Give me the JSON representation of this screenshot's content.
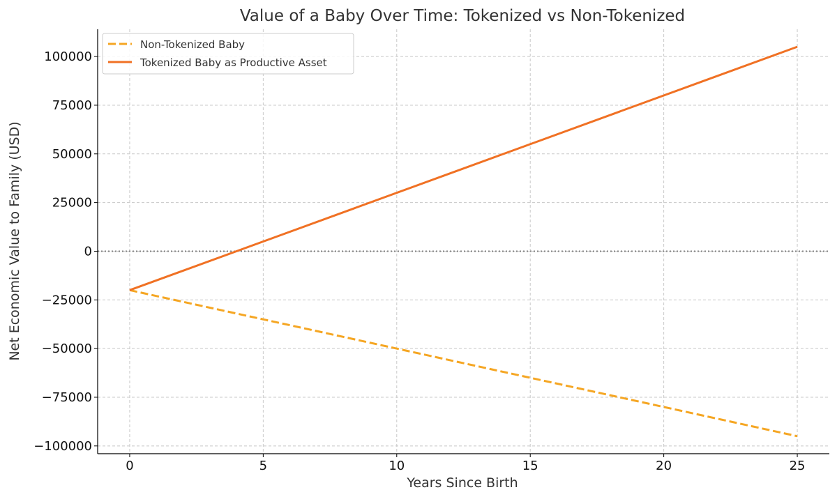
{
  "chart_data": {
    "type": "line",
    "title": "Value of a Baby Over Time: Tokenized vs Non-Tokenized",
    "xlabel": "Years Since Birth",
    "ylabel": "Net Economic Value to Family (USD)",
    "xlim": [
      -1.2,
      26.2
    ],
    "ylim": [
      -104000,
      114000
    ],
    "xticks": [
      0,
      5,
      10,
      15,
      20,
      25
    ],
    "yticks": [
      -100000,
      -75000,
      -50000,
      -25000,
      0,
      25000,
      50000,
      75000,
      100000
    ],
    "ytick_labels": [
      "−100000",
      "−75000",
      "−50000",
      "−25000",
      "0",
      "25000",
      "50000",
      "75000",
      "100000"
    ],
    "grid": true,
    "legend_position": "top-left",
    "reference_line": {
      "y": 0,
      "color": "#808080",
      "style": "dotted"
    },
    "series": [
      {
        "name": "Non-Tokenized Baby",
        "color": "#f5a623",
        "style": "dashed",
        "x": [
          0,
          25
        ],
        "y": [
          -20000,
          -95000
        ]
      },
      {
        "name": "Tokenized Baby as Productive Asset",
        "color": "#f07124",
        "style": "solid",
        "x": [
          0,
          25
        ],
        "y": [
          -20000,
          105000
        ]
      }
    ]
  }
}
